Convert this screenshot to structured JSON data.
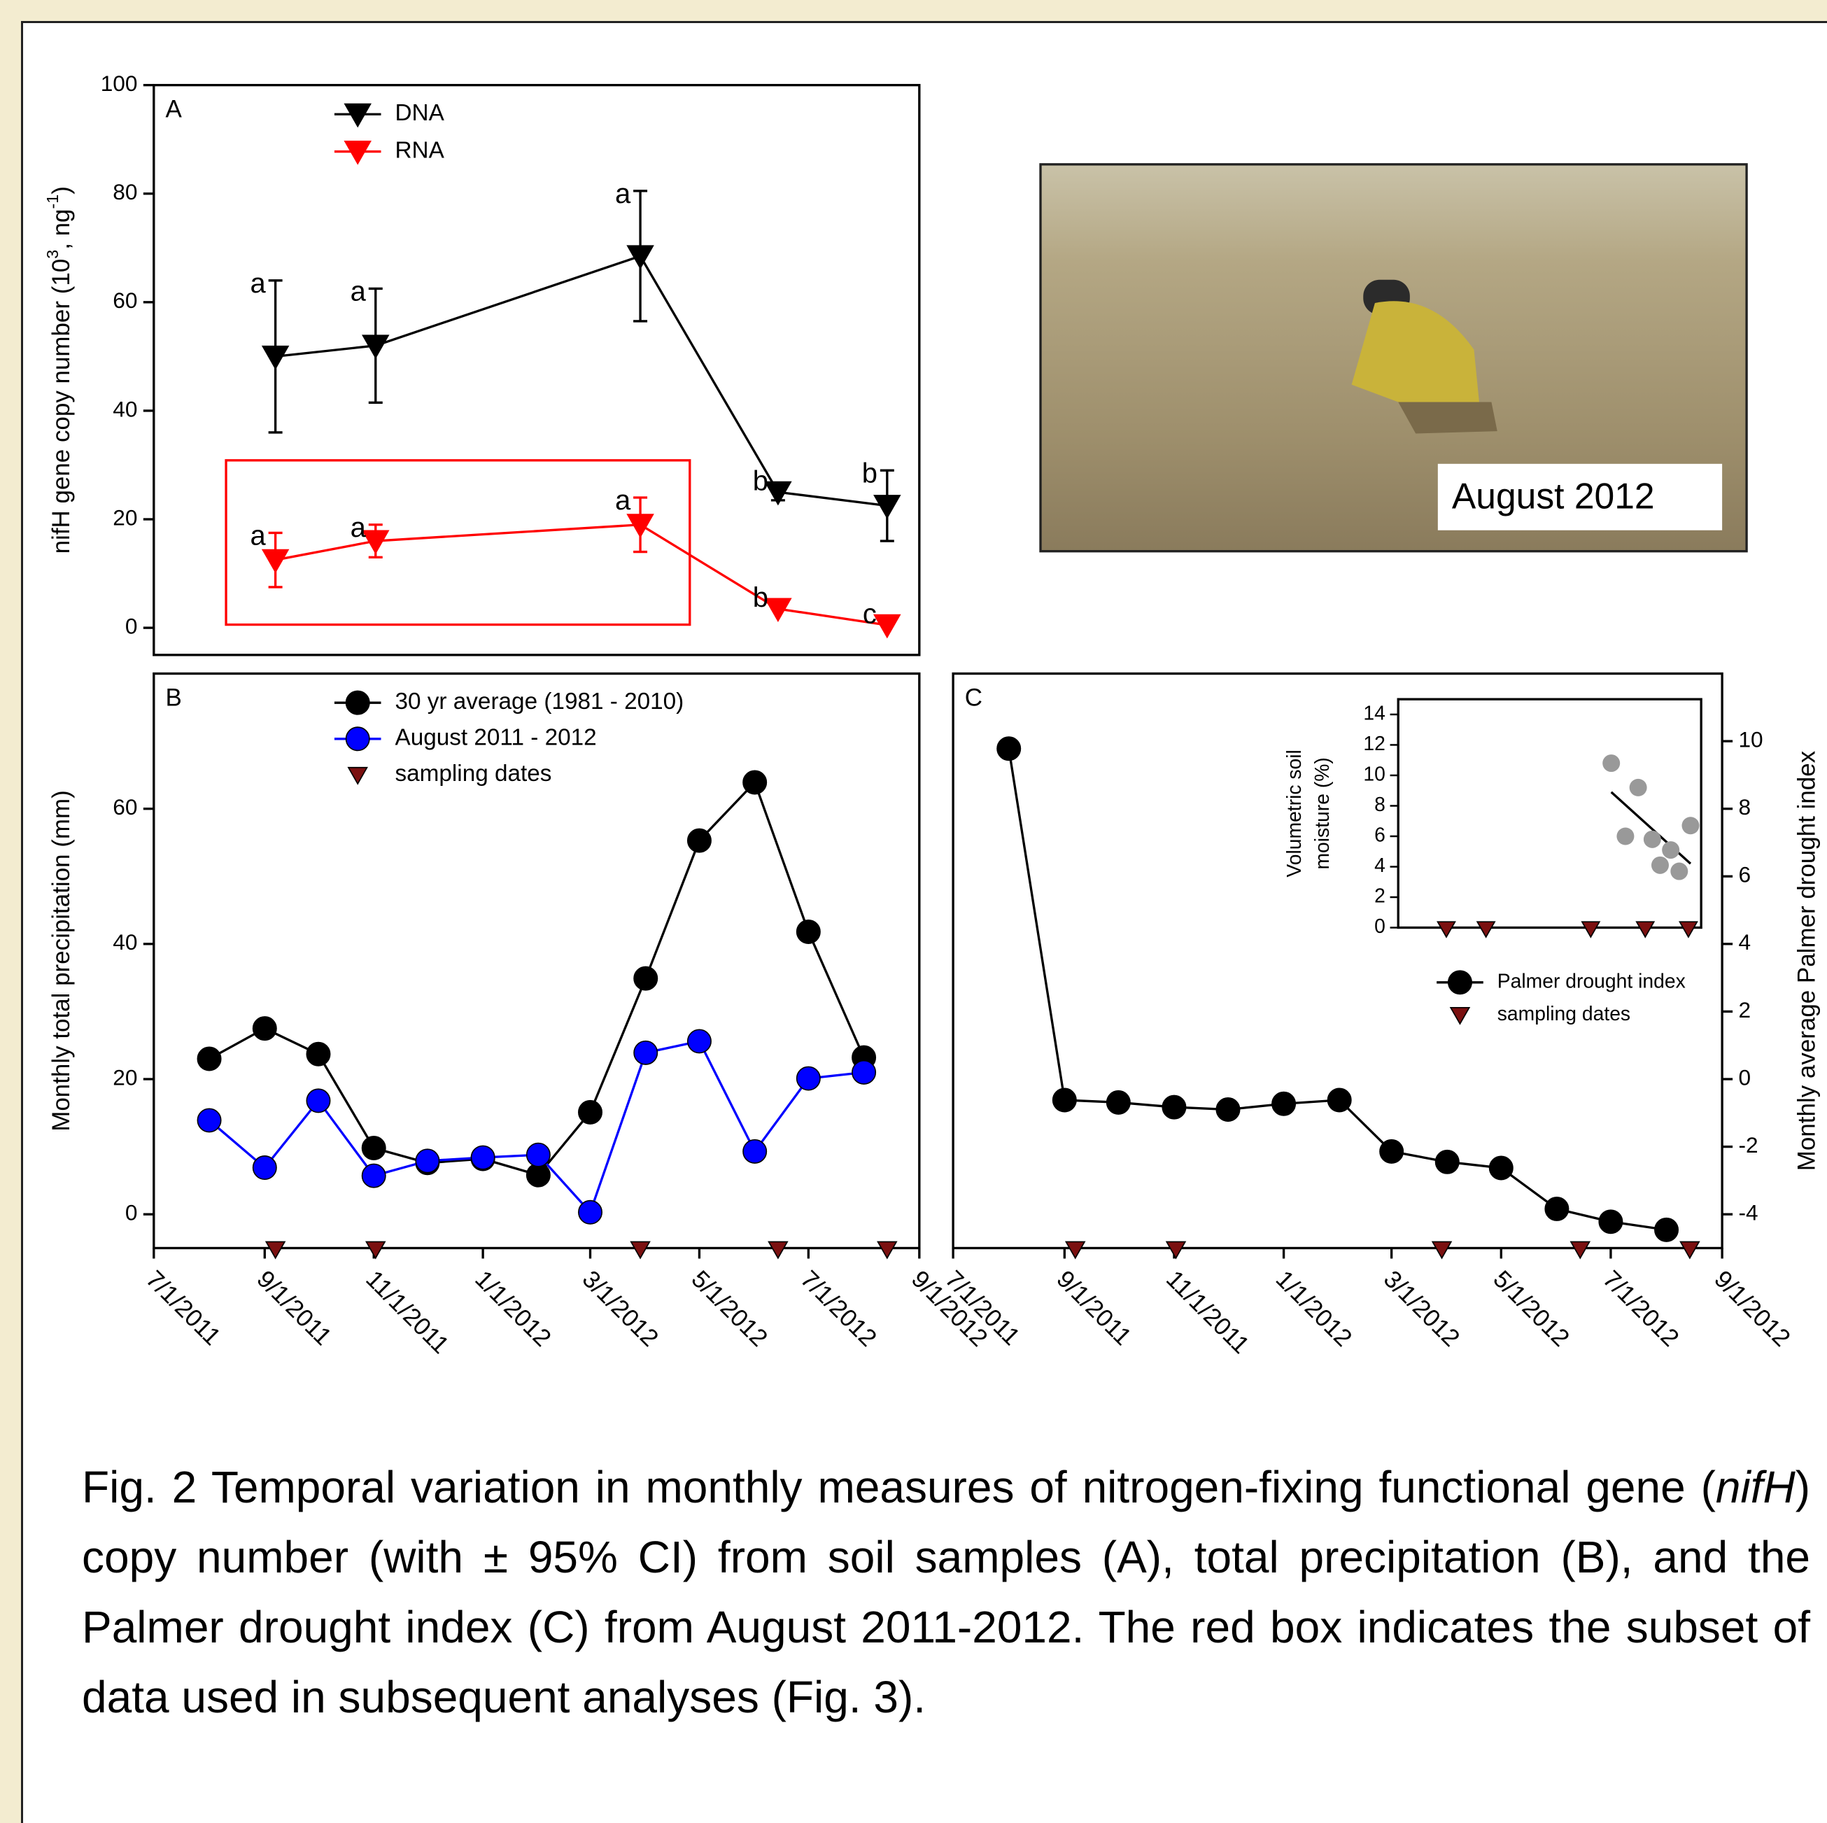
{
  "chart_data": [
    {
      "type": "line",
      "panel_label": "A",
      "ylabel": [
        "nifH gene copy number (10",
        "3",
        ", ng",
        "-1",
        ")"
      ],
      "xlim": [
        "7/1/2011",
        "9/1/2012"
      ],
      "x": [
        "9/7/2011",
        "11/2/2011",
        "3/29/2012",
        "6/14/2012",
        "8/14/2012"
      ],
      "ylim": [
        -5,
        100
      ],
      "yticks": [
        0,
        20,
        40,
        60,
        80,
        100
      ],
      "legend": "upper left",
      "series": [
        {
          "name": "DNA",
          "color": "#000000",
          "marker": "triangle-down",
          "values": [
            50,
            52,
            68.5,
            25,
            22.5
          ],
          "errors": [
            14,
            10.5,
            12,
            1.5,
            6.5
          ],
          "letters": [
            "a",
            "a",
            "a",
            "b",
            "b"
          ]
        },
        {
          "name": "RNA",
          "color": "#ff0000",
          "marker": "triangle-down",
          "values": [
            12.5,
            16,
            19,
            3.5,
            0.5
          ],
          "errors": [
            5,
            3,
            5,
            0,
            0
          ],
          "letters": [
            "a",
            "a",
            "a",
            "b",
            "c"
          ]
        }
      ]
    },
    {
      "type": "line",
      "panel_label": "B",
      "ylabel": [
        "Monthly total precipitation (mm)"
      ],
      "xlim": [
        "7/1/2011",
        "9/1/2012"
      ],
      "xticks": [
        "7/1/2011",
        "9/1/2011",
        "11/1/2011",
        "1/1/2012",
        "3/1/2012",
        "5/1/2012",
        "7/1/2012",
        "9/1/2012"
      ],
      "x": [
        "8/1/2011",
        "9/1/2011",
        "10/1/2011",
        "11/1/2011",
        "12/1/2011",
        "1/1/2012",
        "2/1/2012",
        "3/1/2012",
        "4/1/2012",
        "5/1/2012",
        "6/1/2012",
        "7/1/2012",
        "8/1/2012"
      ],
      "ylim": [
        -5,
        80
      ],
      "yticks": [
        0,
        20,
        40,
        60
      ],
      "legend": "upper left",
      "series": [
        {
          "name": "30 yr average (1981 - 2010)",
          "color": "#000000",
          "marker": "circle",
          "values": [
            23,
            27.5,
            23.7,
            9.8,
            7.6,
            8.2,
            5.8,
            15.1,
            34.9,
            55.3,
            63.9,
            41.8,
            23.2
          ]
        },
        {
          "name": "August 2011 - 2012",
          "color": "#0000ff",
          "marker": "circle",
          "values": [
            13.9,
            6.9,
            16.8,
            5.7,
            7.9,
            8.4,
            8.8,
            0.3,
            23.9,
            25.6,
            9.3,
            20.1,
            21
          ]
        },
        {
          "name": "sampling dates",
          "color": "#7b1010",
          "marker": "triangle-down",
          "x": [
            "9/7/2011",
            "11/2/2011",
            "3/29/2012",
            "6/14/2012",
            "8/14/2012"
          ]
        }
      ]
    },
    {
      "type": "line",
      "panel_label": "C",
      "ylabel": [
        "Monthly average Palmer drought index"
      ],
      "xlim": [
        "7/1/2011",
        "9/1/2012"
      ],
      "xticks": [
        "7/1/2011",
        "9/1/2011",
        "11/1/2011",
        "1/1/2012",
        "3/1/2012",
        "5/1/2012",
        "7/1/2012",
        "9/1/2012"
      ],
      "x": [
        "8/1/2011",
        "9/1/2011",
        "10/1/2011",
        "11/1/2011",
        "12/1/2011",
        "1/1/2012",
        "2/1/2012",
        "3/1/2012",
        "4/1/2012",
        "5/1/2012",
        "6/1/2012",
        "7/1/2012",
        "8/1/2012"
      ],
      "ylim": [
        -5,
        12
      ],
      "yticks": [
        -4,
        -2,
        0,
        2,
        4,
        6,
        8,
        10
      ],
      "legend": "center right",
      "series": [
        {
          "name": "Palmer drought index",
          "color": "#000000",
          "marker": "circle",
          "values": [
            9.78,
            -0.62,
            -0.69,
            -0.83,
            -0.9,
            -0.73,
            -0.62,
            -2.14,
            -2.45,
            -2.63,
            -3.84,
            -4.22,
            -4.46
          ]
        },
        {
          "name": "sampling dates",
          "color": "#7b1010",
          "marker": "triangle-down",
          "x": [
            "9/7/2011",
            "11/2/2011",
            "3/29/2012",
            "6/14/2012",
            "8/14/2012"
          ]
        }
      ],
      "inset": {
        "type": "scatter",
        "ylabel": [
          "Volumetric soil",
          "moisture (%)"
        ],
        "xlim": [
          "7/1/2011",
          "9/1/2012"
        ],
        "ylim": [
          0,
          15
        ],
        "yticks": [
          0,
          2,
          4,
          6,
          8,
          10,
          12,
          14
        ],
        "color": "#999999",
        "x": [
          "4/27/2012",
          "5/17/2012",
          "6/4/2012",
          "6/24/2012",
          "7/5/2012",
          "7/20/2012",
          "8/1/2012",
          "8/17/2012"
        ],
        "values": [
          10.8,
          6,
          9.2,
          5.8,
          4.1,
          5.1,
          3.7,
          6.7
        ],
        "fit": {
          "x": [
            "4/27/2012",
            "8/17/2012"
          ],
          "values": [
            8.9,
            4.2
          ]
        }
      }
    }
  ],
  "photo": {
    "caption": "August 2012"
  },
  "figure_caption": [
    "Fig. 2 Temporal variation in monthly measures of nitrogen-fixing functional gene (",
    "nifH",
    ") copy number (with ± 95% CI) from soil samples (A), total precipitation (B), and the Palmer drought index (C) from August 2011-2012.  The red box indicates the subset of data used in subsequent analyses (Fig. 3)."
  ]
}
